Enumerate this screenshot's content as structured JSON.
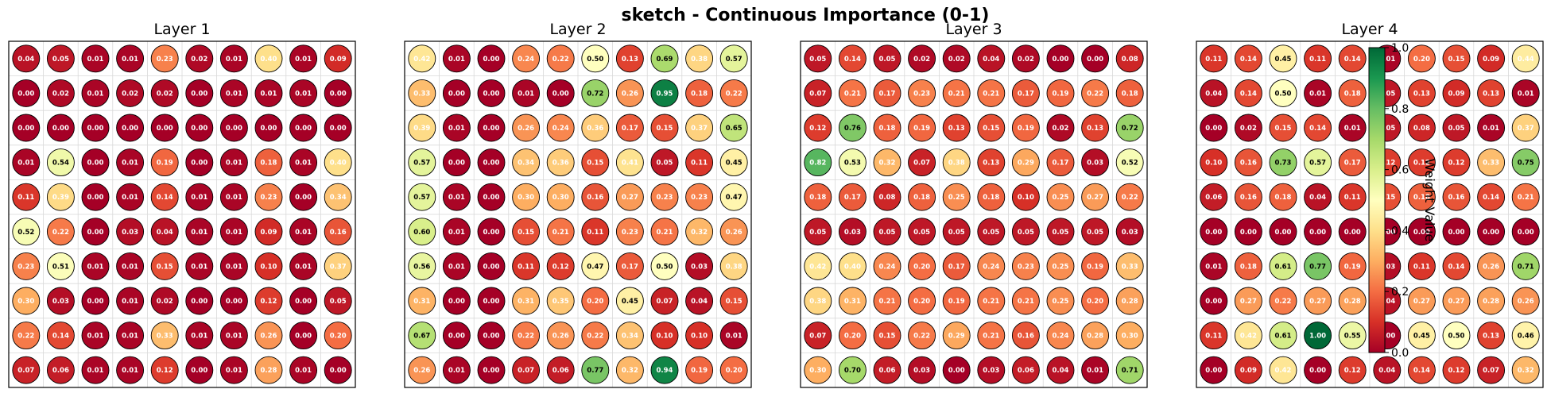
{
  "figure": {
    "title": "sketch - Continuous Importance (0-1)"
  },
  "colorbar": {
    "label": "Weight Value",
    "ticks": [
      "0.0",
      "0.2",
      "0.4",
      "0.6",
      "0.8",
      "1.0"
    ],
    "colormap": [
      "#a50026",
      "#d73027",
      "#f46d43",
      "#fdae61",
      "#fee08b",
      "#ffffbf",
      "#d9ef8b",
      "#a6d96a",
      "#66bd63",
      "#1a9850",
      "#006837"
    ],
    "range": [
      0,
      1
    ]
  },
  "chart_data": [
    {
      "type": "heatmap",
      "title": "Layer 1",
      "values": [
        [
          0.04,
          0.05,
          0.01,
          0.01,
          0.23,
          0.02,
          0.01,
          0.4,
          0.01,
          0.09
        ],
        [
          0.0,
          0.02,
          0.01,
          0.02,
          0.02,
          0.0,
          0.01,
          0.01,
          0.01,
          0.0
        ],
        [
          0.0,
          0.0,
          0.0,
          0.0,
          0.0,
          0.0,
          0.0,
          0.0,
          0.0,
          0.0
        ],
        [
          0.01,
          0.54,
          0.0,
          0.01,
          0.19,
          0.0,
          0.01,
          0.18,
          0.01,
          0.4
        ],
        [
          0.11,
          0.39,
          0.0,
          0.01,
          0.14,
          0.01,
          0.01,
          0.23,
          0.0,
          0.34
        ],
        [
          0.52,
          0.22,
          0.0,
          0.03,
          0.04,
          0.01,
          0.01,
          0.09,
          0.01,
          0.16
        ],
        [
          0.23,
          0.51,
          0.01,
          0.01,
          0.15,
          0.01,
          0.01,
          0.1,
          0.01,
          0.37
        ],
        [
          0.3,
          0.03,
          0.0,
          0.01,
          0.02,
          0.0,
          0.0,
          0.12,
          0.0,
          0.05
        ],
        [
          0.22,
          0.14,
          0.01,
          0.01,
          0.33,
          0.01,
          0.01,
          0.26,
          0.0,
          0.2
        ],
        [
          0.07,
          0.06,
          0.01,
          0.01,
          0.12,
          0.0,
          0.01,
          0.28,
          0.01,
          0.0
        ]
      ]
    },
    {
      "type": "heatmap",
      "title": "Layer 2",
      "values": [
        [
          0.42,
          0.01,
          0.0,
          0.24,
          0.22,
          0.5,
          0.13,
          0.69,
          0.38,
          0.57
        ],
        [
          0.33,
          0.0,
          0.0,
          0.01,
          0.0,
          0.72,
          0.26,
          0.95,
          0.18,
          0.22
        ],
        [
          0.39,
          0.01,
          0.0,
          0.26,
          0.24,
          0.36,
          0.17,
          0.15,
          0.37,
          0.65
        ],
        [
          0.57,
          0.0,
          0.0,
          0.34,
          0.36,
          0.15,
          0.41,
          0.05,
          0.11,
          0.45
        ],
        [
          0.57,
          0.01,
          0.0,
          0.3,
          0.3,
          0.16,
          0.27,
          0.23,
          0.23,
          0.47
        ],
        [
          0.6,
          0.01,
          0.0,
          0.15,
          0.21,
          0.11,
          0.23,
          0.21,
          0.32,
          0.26
        ],
        [
          0.56,
          0.01,
          0.0,
          0.11,
          0.12,
          0.47,
          0.17,
          0.5,
          0.03,
          0.38
        ],
        [
          0.31,
          0.0,
          0.0,
          0.31,
          0.35,
          0.2,
          0.45,
          0.07,
          0.04,
          0.15
        ],
        [
          0.67,
          0.0,
          0.0,
          0.22,
          0.26,
          0.22,
          0.34,
          0.1,
          0.1,
          0.01
        ],
        [
          0.26,
          0.01,
          0.0,
          0.07,
          0.06,
          0.77,
          0.32,
          0.94,
          0.19,
          0.2
        ]
      ]
    },
    {
      "type": "heatmap",
      "title": "Layer 3",
      "values": [
        [
          0.05,
          0.14,
          0.05,
          0.02,
          0.02,
          0.04,
          0.02,
          0.0,
          0.0,
          0.08
        ],
        [
          0.07,
          0.21,
          0.17,
          0.23,
          0.21,
          0.21,
          0.17,
          0.19,
          0.22,
          0.18
        ],
        [
          0.12,
          0.76,
          0.18,
          0.19,
          0.13,
          0.15,
          0.19,
          0.02,
          0.13,
          0.72
        ],
        [
          0.82,
          0.53,
          0.32,
          0.07,
          0.38,
          0.13,
          0.29,
          0.17,
          0.03,
          0.52
        ],
        [
          0.18,
          0.17,
          0.08,
          0.18,
          0.25,
          0.18,
          0.1,
          0.25,
          0.27,
          0.22
        ],
        [
          0.05,
          0.03,
          0.05,
          0.05,
          0.05,
          0.05,
          0.05,
          0.05,
          0.05,
          0.03
        ],
        [
          0.42,
          0.4,
          0.24,
          0.2,
          0.17,
          0.24,
          0.23,
          0.25,
          0.19,
          0.33
        ],
        [
          0.38,
          0.31,
          0.21,
          0.2,
          0.19,
          0.21,
          0.21,
          0.25,
          0.2,
          0.28
        ],
        [
          0.07,
          0.2,
          0.15,
          0.22,
          0.29,
          0.21,
          0.16,
          0.24,
          0.28,
          0.3
        ],
        [
          0.3,
          0.7,
          0.06,
          0.03,
          0.0,
          0.03,
          0.06,
          0.04,
          0.01,
          0.71
        ]
      ]
    },
    {
      "type": "heatmap",
      "title": "Layer 4",
      "values": [
        [
          0.11,
          0.14,
          0.45,
          0.11,
          0.14,
          0.01,
          0.2,
          0.15,
          0.09,
          0.44
        ],
        [
          0.04,
          0.14,
          0.5,
          0.01,
          0.18,
          0.05,
          0.13,
          0.09,
          0.13,
          0.01
        ],
        [
          0.0,
          0.02,
          0.15,
          0.14,
          0.01,
          0.05,
          0.08,
          0.05,
          0.01,
          0.37
        ],
        [
          0.1,
          0.16,
          0.73,
          0.57,
          0.17,
          0.12,
          0.12,
          0.12,
          0.33,
          0.75
        ],
        [
          0.06,
          0.16,
          0.18,
          0.04,
          0.11,
          0.15,
          0.18,
          0.16,
          0.14,
          0.21
        ],
        [
          0.0,
          0.0,
          0.0,
          0.0,
          0.0,
          0.0,
          0.0,
          0.0,
          0.0,
          0.0
        ],
        [
          0.01,
          0.18,
          0.61,
          0.77,
          0.19,
          0.03,
          0.11,
          0.14,
          0.26,
          0.71
        ],
        [
          0.0,
          0.27,
          0.22,
          0.27,
          0.28,
          0.04,
          0.27,
          0.27,
          0.28,
          0.26
        ],
        [
          0.11,
          0.42,
          0.61,
          1.0,
          0.55,
          0.0,
          0.45,
          0.5,
          0.13,
          0.46
        ],
        [
          0.0,
          0.09,
          0.42,
          0.0,
          0.12,
          0.04,
          0.14,
          0.12,
          0.07,
          0.32
        ]
      ]
    }
  ]
}
